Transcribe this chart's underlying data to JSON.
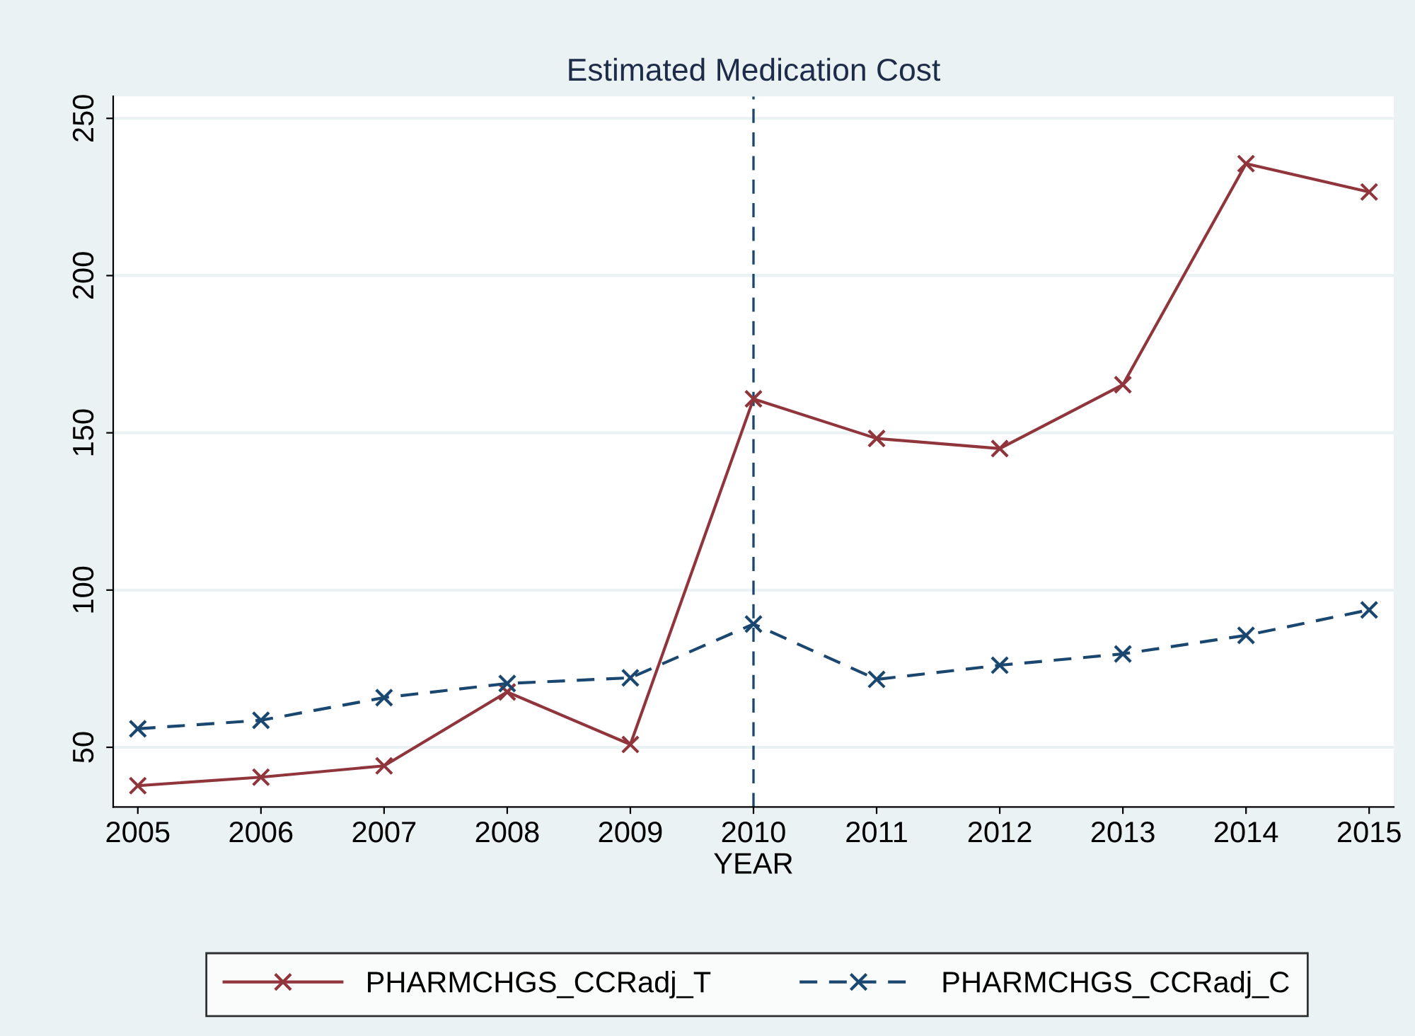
{
  "chart_data": {
    "type": "line",
    "title": "Estimated Medication Cost",
    "xlabel": "YEAR",
    "x": [
      2005,
      2006,
      2007,
      2008,
      2009,
      2010,
      2011,
      2012,
      2013,
      2014,
      2015
    ],
    "series": [
      {
        "name": "PHARMCHGS_CCRadj_T",
        "color": "#90353b",
        "line_style": "solid",
        "values": [
          37.8,
          40.5,
          44.1,
          67.6,
          50.9,
          160.8,
          148.2,
          145.0,
          165.3,
          235.6,
          226.6
        ]
      },
      {
        "name": "PHARMCHGS_CCRadj_C",
        "color": "#1a476f",
        "line_style": "dashed",
        "values": [
          55.9,
          58.6,
          65.8,
          70.3,
          72.1,
          89.2,
          71.6,
          76.1,
          79.7,
          85.6,
          93.7
        ]
      }
    ],
    "xlim": [
      2004.8,
      2015.2
    ],
    "ylim": [
      31,
      257
    ],
    "xticks": [
      2005,
      2006,
      2007,
      2008,
      2009,
      2010,
      2011,
      2012,
      2013,
      2014,
      2015
    ],
    "yticks": [
      50,
      100,
      150,
      200,
      250
    ],
    "ref_lines": [
      {
        "axis": "x",
        "value": 2010,
        "color": "#1a476f",
        "line_style": "dashed"
      }
    ],
    "grid": "y",
    "legend": "bottom",
    "marker": "cross"
  }
}
